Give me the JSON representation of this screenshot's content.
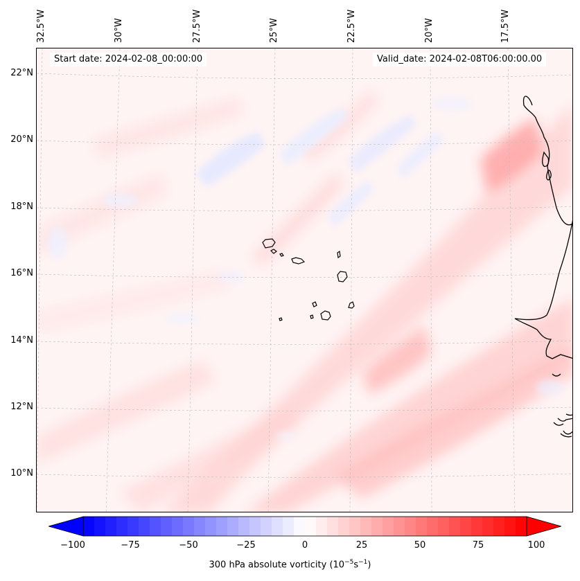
{
  "map": {
    "start_date": "Start date: 2024-02-08_00:00:00",
    "valid_date": "Valid_date: 2024-02-08T06:00:00.00",
    "lon_labels": [
      "32.5°W",
      "30°W",
      "27.5°W",
      "25°W",
      "22.5°W",
      "20°W",
      "17.5°W"
    ],
    "lat_labels": [
      "22°N",
      "20°N",
      "18°N",
      "16°N",
      "14°N",
      "12°N",
      "10°N"
    ],
    "land_color": "#ffffff",
    "coast_color": "#000000",
    "grid": "dashed"
  },
  "colorbar": {
    "ticks": [
      "−100",
      "−75",
      "−50",
      "−25",
      "0",
      "25",
      "50",
      "75",
      "100"
    ],
    "range": [
      -100,
      100
    ],
    "low_color": "#0000ff",
    "mid_color": "#ffffff",
    "high_color": "#ff0000",
    "label": "300 hPa absolute vorticity (10",
    "label_exp1": "−5",
    "label_mid": "s",
    "label_exp2": "−1",
    "label_end": ")"
  }
}
